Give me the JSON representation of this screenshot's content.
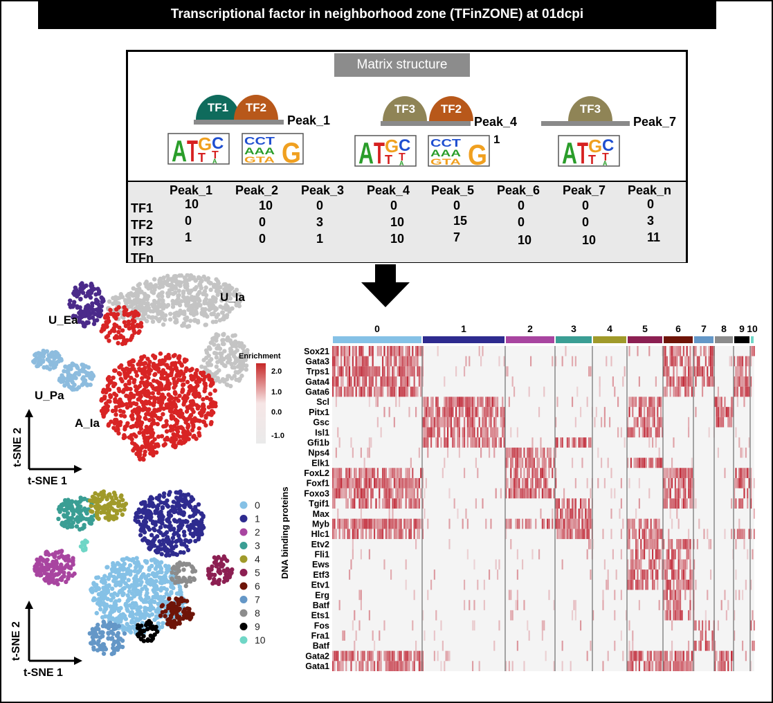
{
  "title": "Transcriptional factor in neighborhood zone (TFinZONE) at 01dcpi",
  "matrix_label": "Matrix structure",
  "peak_groups": [
    {
      "peak": "Peak_1",
      "tfs": [
        {
          "label": "TF1",
          "color": "#0f6b5c"
        },
        {
          "label": "TF2",
          "color": "#b8581a"
        }
      ]
    },
    {
      "peak": "Peak_4",
      "tfs": [
        {
          "label": "TF3",
          "color": "#8f8456"
        },
        {
          "label": "TF2",
          "color": "#b8581a"
        }
      ]
    },
    {
      "peak": "Peak_7",
      "tfs": [
        {
          "label": "TF3",
          "color": "#8f8456"
        }
      ]
    }
  ],
  "stray_label": "1",
  "table": {
    "columns": [
      "Peak_1",
      "Peak_2",
      "Peak_3",
      "Peak_4",
      "Peak_5",
      "Peak_6",
      "Peak_7",
      "Peak_n"
    ],
    "rows": [
      {
        "name": "TF1",
        "values": [
          "10",
          "10",
          "0",
          "0",
          "0",
          "0",
          "0",
          "0"
        ]
      },
      {
        "name": "TF2",
        "values": [
          "0",
          "0",
          "3",
          "10",
          "15",
          "0",
          "0",
          "3"
        ]
      },
      {
        "name": "TF3",
        "values": [
          "1",
          "0",
          "1",
          "10",
          "7",
          "10",
          "10",
          "11"
        ]
      },
      {
        "name": "TFn",
        "values": []
      }
    ]
  },
  "tsne_top": {
    "labels": [
      "U_Ia",
      "U_Ea",
      "U_Pa",
      "A_Ia"
    ],
    "axis_x": "t-SNE 1",
    "axis_y": "t-SNE 2"
  },
  "enrichment": {
    "title": "Enrichment",
    "ticks": [
      "2.0",
      "1.0",
      "0.0",
      "-1.0"
    ]
  },
  "tsne_bottom": {
    "axis_x": "t-SNE 1",
    "axis_y": "t-SNE 2",
    "clusters": [
      {
        "id": "0",
        "color": "#85c1e6"
      },
      {
        "id": "1",
        "color": "#2e2b8f"
      },
      {
        "id": "2",
        "color": "#a845a0"
      },
      {
        "id": "3",
        "color": "#3a9e94"
      },
      {
        "id": "4",
        "color": "#a09a2a"
      },
      {
        "id": "5",
        "color": "#8c1f52"
      },
      {
        "id": "6",
        "color": "#6e1408"
      },
      {
        "id": "7",
        "color": "#6497c7"
      },
      {
        "id": "8",
        "color": "#8c8c8c"
      },
      {
        "id": "9",
        "color": "#000000"
      },
      {
        "id": "10",
        "color": "#6fd6c6"
      }
    ]
  },
  "heatmap": {
    "ylabel": "DNA binding proteins",
    "genes": [
      "Sox21",
      "Gata3",
      "Trps1",
      "Gata4",
      "Gata6",
      "Scl",
      "Pitx1",
      "Gsc",
      "Isl1",
      "Gfi1b",
      "Nps4",
      "Elk1",
      "FoxL2",
      "Foxf1",
      "Foxo3",
      "Tgif1",
      "Max",
      "Myb",
      "Hlc1",
      "Etv2",
      "Fli1",
      "Ews",
      "Etf3",
      "Etv1",
      "Erg",
      "Batf",
      "Ets1",
      "Fos",
      "Fra1",
      "Batf",
      "Gata2",
      "Gata1"
    ]
  }
}
